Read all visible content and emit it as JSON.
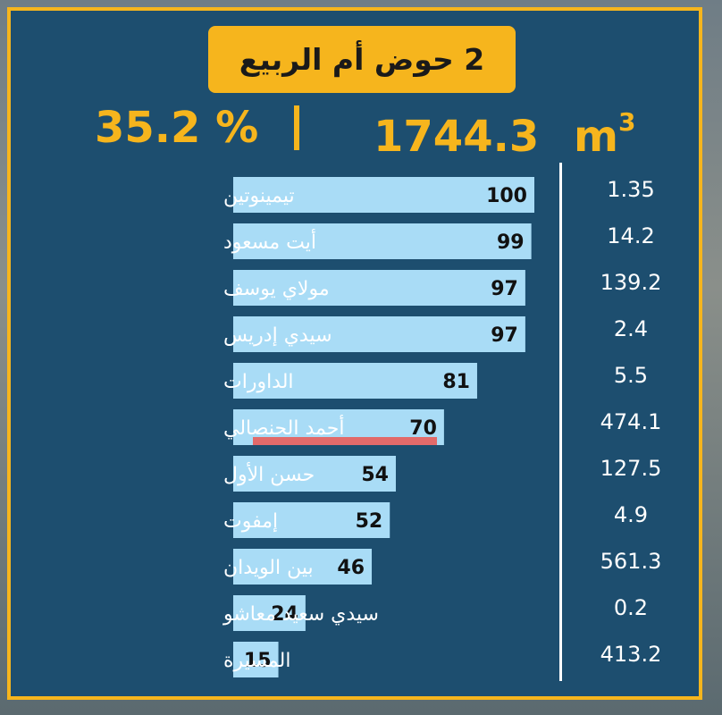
{
  "title": "2 حوض أم الربيع",
  "summary": {
    "percent": "35.2 %",
    "separator": "|",
    "volume": "1744.3",
    "unit_base": "m",
    "unit_exp": "3"
  },
  "colors": {
    "background": "#1d4e6f",
    "accent": "#f6b51d",
    "bar": "#a9dcf6",
    "highlight": "#e26a6a"
  },
  "chart_data": {
    "type": "bar",
    "orientation": "horizontal",
    "categories": [
      "تيمينوتين",
      "أيت مسعود",
      "مولاي يوسف",
      "سيدي إدريس",
      "الداورات",
      "أحمد الحنصالي",
      "حسن الأول",
      "إمفوت",
      "بين الويدان",
      "سيدي سعيد معاشو",
      "المسيرة"
    ],
    "series": [
      {
        "values": [
          100,
          99,
          97,
          97,
          81,
          70,
          54,
          52,
          46,
          24,
          15
        ]
      }
    ],
    "side_values": [
      "1.35",
      "14.2",
      "139.2",
      "2.4",
      "5.5",
      "474.1",
      "127.5",
      "4.9",
      "561.3",
      "0.2",
      "413.2"
    ],
    "xlim": [
      0,
      100
    ],
    "grid": false,
    "legend": "none"
  }
}
